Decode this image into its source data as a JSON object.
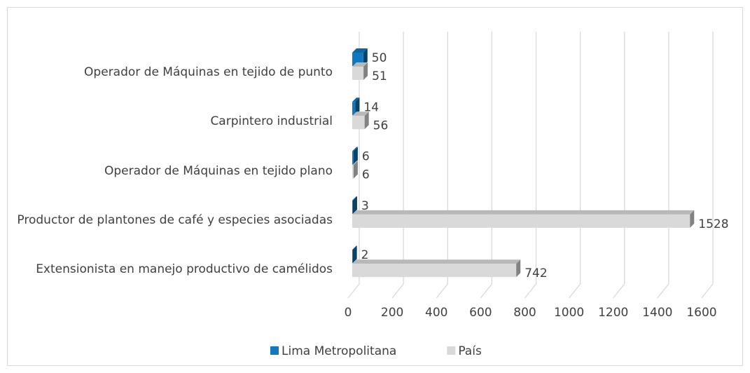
{
  "chart_data": {
    "type": "bar3d_horizontal",
    "categories": [
      "Operador de Máquinas en tejido de punto",
      "Carpintero industrial",
      "Operador de Máquinas en tejido plano",
      "Productor de plantones de café y especies asociadas",
      "Extensionista en manejo productivo de camélidos"
    ],
    "series": [
      {
        "name": "Lima Metropolitana",
        "color": "#0f78be",
        "values": [
          50,
          14,
          6,
          3,
          2
        ]
      },
      {
        "name": "País",
        "color": "#d9d9d9",
        "values": [
          51,
          56,
          6,
          1528,
          742
        ]
      }
    ],
    "xlim": [
      0,
      1600
    ],
    "xticks": [
      0,
      200,
      400,
      600,
      800,
      1000,
      1200,
      1400,
      1600
    ],
    "grid": true,
    "legend": "bottom"
  }
}
